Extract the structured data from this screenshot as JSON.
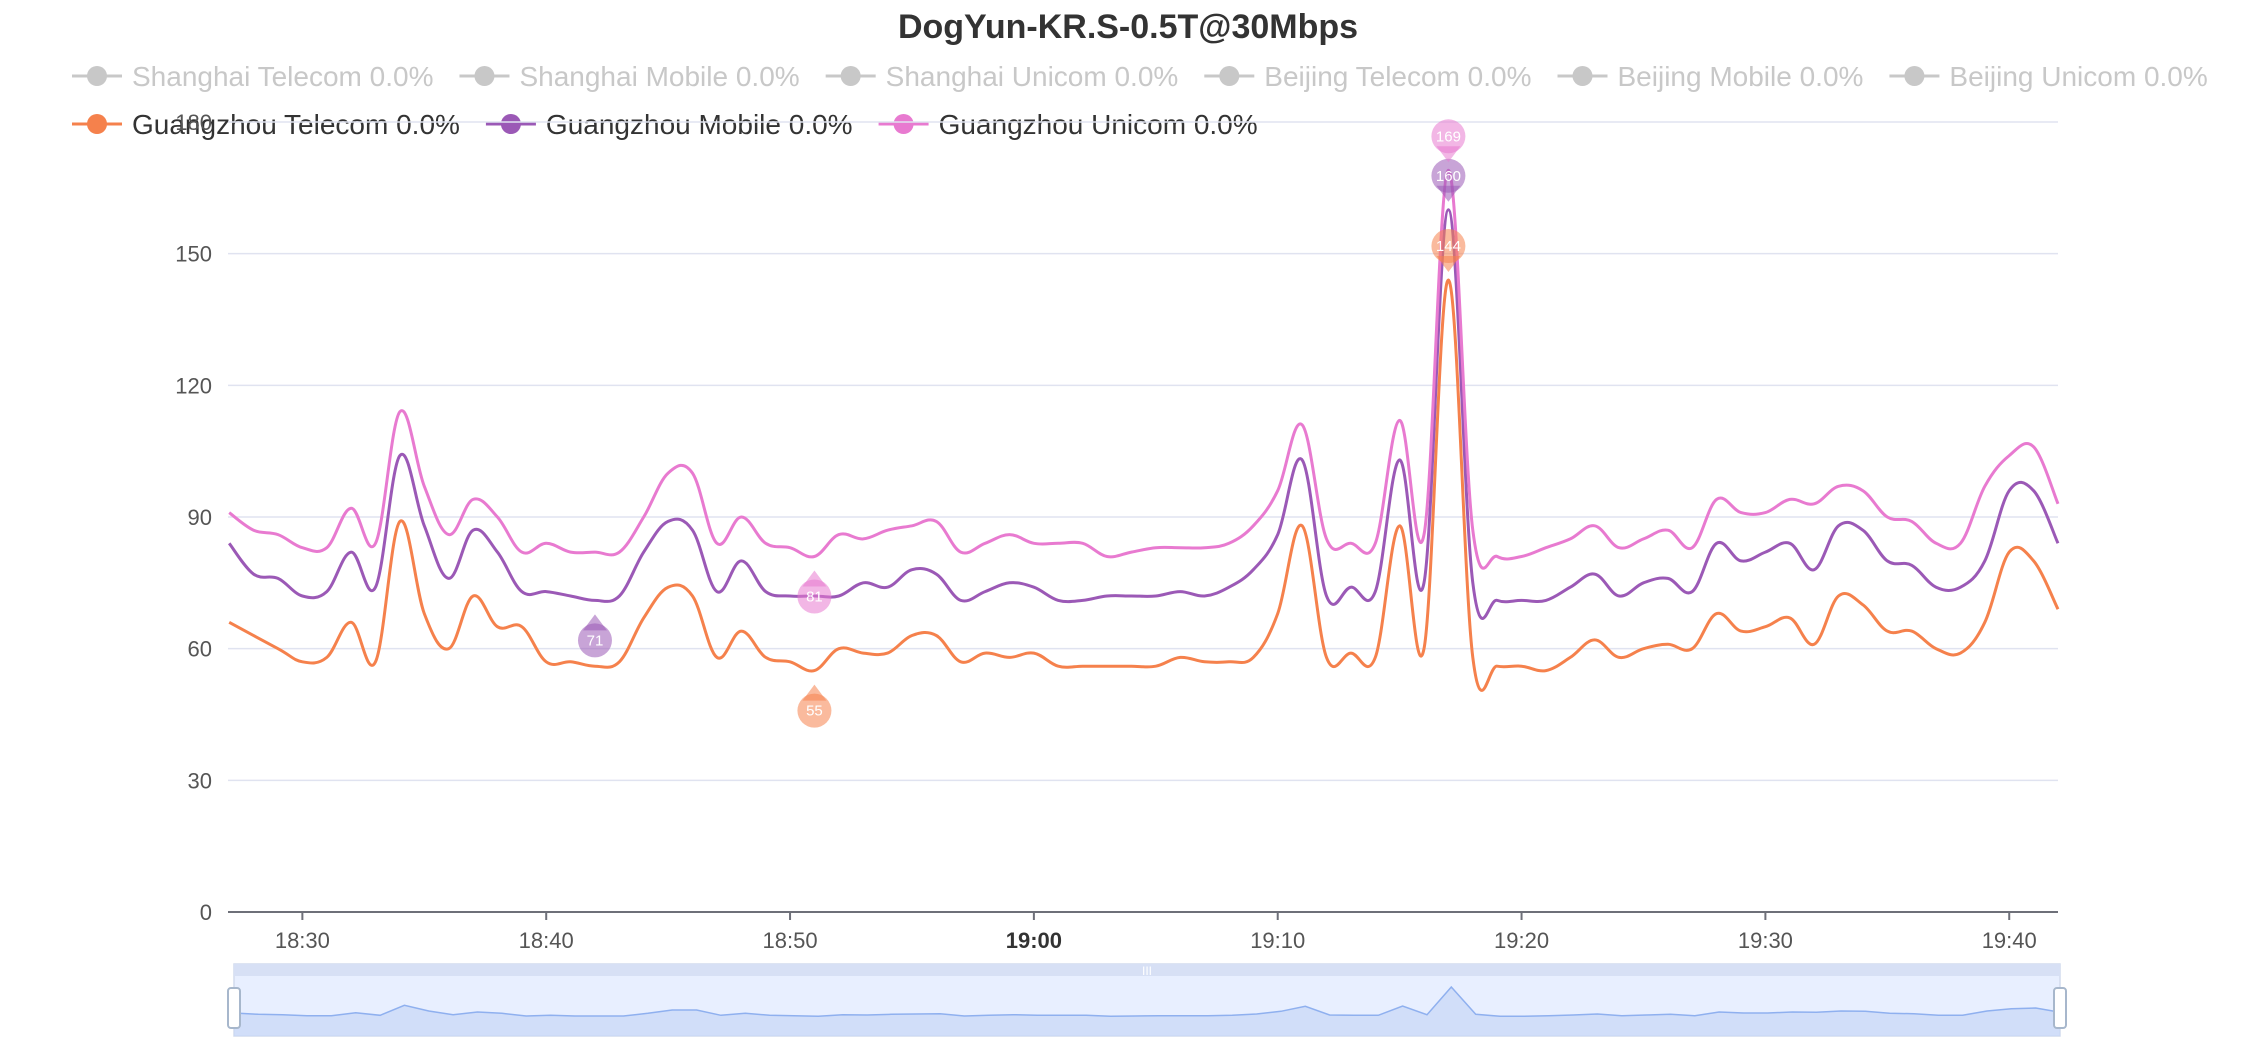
{
  "chart_data": {
    "type": "line",
    "title": "DogYun-KR.S-0.5T@30Mbps",
    "xlabel": "",
    "ylabel": "",
    "ylim": [
      0,
      180
    ],
    "yticks": [
      0,
      30,
      60,
      90,
      120,
      150,
      180
    ],
    "x_range": [
      "18:27",
      "19:42"
    ],
    "x_ticks": [
      "18:30",
      "18:40",
      "18:50",
      "19:00",
      "19:10",
      "19:20",
      "19:30",
      "19:40"
    ],
    "x_tick_bold": "19:00",
    "grid": true,
    "legend_position": "top",
    "legend": [
      {
        "label": "Shanghai Telecom 0.0%",
        "active": false,
        "color": "#c8c8c8"
      },
      {
        "label": "Shanghai Mobile 0.0%",
        "active": false,
        "color": "#c8c8c8"
      },
      {
        "label": "Shanghai Unicom 0.0%",
        "active": false,
        "color": "#c8c8c8"
      },
      {
        "label": "Beijing Telecom 0.0%",
        "active": false,
        "color": "#c8c8c8"
      },
      {
        "label": "Beijing Mobile 0.0%",
        "active": false,
        "color": "#c8c8c8"
      },
      {
        "label": "Beijing Unicom 0.0%",
        "active": false,
        "color": "#c8c8c8"
      },
      {
        "label": "Guangzhou Telecom 0.0%",
        "active": true,
        "color": "#f5814c"
      },
      {
        "label": "Guangzhou Mobile 0.0%",
        "active": true,
        "color": "#9b59b6"
      },
      {
        "label": "Guangzhou Unicom 0.0%",
        "active": true,
        "color": "#e87ad0"
      }
    ],
    "series": [
      {
        "name": "Guangzhou Telecom",
        "color": "#f5814c",
        "points": [
          [
            "18:27",
            66
          ],
          [
            "18:29",
            60
          ],
          [
            "18:30",
            57
          ],
          [
            "18:31",
            58
          ],
          [
            "18:32",
            66
          ],
          [
            "18:33",
            57
          ],
          [
            "18:34",
            89
          ],
          [
            "18:35",
            68
          ],
          [
            "18:36",
            60
          ],
          [
            "18:37",
            72
          ],
          [
            "18:38",
            65
          ],
          [
            "18:39",
            65
          ],
          [
            "18:40",
            57
          ],
          [
            "18:41",
            57
          ],
          [
            "18:42",
            56
          ],
          [
            "18:43",
            57
          ],
          [
            "18:44",
            67
          ],
          [
            "18:45",
            74
          ],
          [
            "18:46",
            72
          ],
          [
            "18:47",
            58
          ],
          [
            "18:48",
            64
          ],
          [
            "18:49",
            58
          ],
          [
            "18:50",
            57
          ],
          [
            "18:51",
            55
          ],
          [
            "18:52",
            60
          ],
          [
            "18:53",
            59
          ],
          [
            "18:54",
            59
          ],
          [
            "18:55",
            63
          ],
          [
            "18:56",
            63
          ],
          [
            "18:57",
            57
          ],
          [
            "18:58",
            59
          ],
          [
            "18:59",
            58
          ],
          [
            "19:00",
            59
          ],
          [
            "19:01",
            56
          ],
          [
            "19:02",
            56
          ],
          [
            "19:03",
            56
          ],
          [
            "19:04",
            56
          ],
          [
            "19:05",
            56
          ],
          [
            "19:06",
            58
          ],
          [
            "19:07",
            57
          ],
          [
            "19:08",
            57
          ],
          [
            "19:09",
            58
          ],
          [
            "19:10",
            68
          ],
          [
            "19:11",
            88
          ],
          [
            "19:12",
            58
          ],
          [
            "19:13",
            59
          ],
          [
            "19:14",
            58
          ],
          [
            "19:15",
            88
          ],
          [
            "19:16",
            60
          ],
          [
            "19:17",
            144
          ],
          [
            "19:18",
            58
          ],
          [
            "19:19",
            56
          ],
          [
            "19:20",
            56
          ],
          [
            "19:21",
            55
          ],
          [
            "19:22",
            58
          ],
          [
            "19:23",
            62
          ],
          [
            "19:24",
            58
          ],
          [
            "19:25",
            60
          ],
          [
            "19:26",
            61
          ],
          [
            "19:27",
            60
          ],
          [
            "19:28",
            68
          ],
          [
            "19:29",
            64
          ],
          [
            "19:30",
            65
          ],
          [
            "19:31",
            67
          ],
          [
            "19:32",
            61
          ],
          [
            "19:33",
            72
          ],
          [
            "19:34",
            70
          ],
          [
            "19:35",
            64
          ],
          [
            "19:36",
            64
          ],
          [
            "19:37",
            60
          ],
          [
            "19:38",
            59
          ],
          [
            "19:39",
            66
          ],
          [
            "19:40",
            82
          ],
          [
            "19:41",
            80
          ],
          [
            "19:42",
            69
          ]
        ],
        "min": {
          "time": "18:51",
          "value": 55
        },
        "max": {
          "time": "19:17",
          "value": 144
        }
      },
      {
        "name": "Guangzhou Mobile",
        "color": "#9b59b6",
        "points": [
          [
            "18:27",
            84
          ],
          [
            "18:28",
            77
          ],
          [
            "18:29",
            76
          ],
          [
            "18:30",
            72
          ],
          [
            "18:31",
            73
          ],
          [
            "18:32",
            82
          ],
          [
            "18:33",
            74
          ],
          [
            "18:34",
            104
          ],
          [
            "18:35",
            88
          ],
          [
            "18:36",
            76
          ],
          [
            "18:37",
            87
          ],
          [
            "18:38",
            82
          ],
          [
            "18:39",
            73
          ],
          [
            "18:40",
            73
          ],
          [
            "18:41",
            72
          ],
          [
            "18:42",
            71
          ],
          [
            "18:43",
            72
          ],
          [
            "18:44",
            82
          ],
          [
            "18:45",
            89
          ],
          [
            "18:46",
            87
          ],
          [
            "18:47",
            73
          ],
          [
            "18:48",
            80
          ],
          [
            "18:49",
            73
          ],
          [
            "18:50",
            72
          ],
          [
            "18:51",
            72
          ],
          [
            "18:52",
            72
          ],
          [
            "18:53",
            75
          ],
          [
            "18:54",
            74
          ],
          [
            "18:55",
            78
          ],
          [
            "18:56",
            77
          ],
          [
            "18:57",
            71
          ],
          [
            "18:58",
            73
          ],
          [
            "18:59",
            75
          ],
          [
            "19:00",
            74
          ],
          [
            "19:01",
            71
          ],
          [
            "19:02",
            71
          ],
          [
            "19:03",
            72
          ],
          [
            "19:04",
            72
          ],
          [
            "19:05",
            72
          ],
          [
            "19:06",
            73
          ],
          [
            "19:07",
            72
          ],
          [
            "19:08",
            74
          ],
          [
            "19:09",
            78
          ],
          [
            "19:10",
            86
          ],
          [
            "19:11",
            103
          ],
          [
            "19:12",
            72
          ],
          [
            "19:13",
            74
          ],
          [
            "19:14",
            73
          ],
          [
            "19:15",
            103
          ],
          [
            "19:16",
            75
          ],
          [
            "19:17",
            160
          ],
          [
            "19:18",
            75
          ],
          [
            "19:19",
            71
          ],
          [
            "19:20",
            71
          ],
          [
            "19:21",
            71
          ],
          [
            "19:22",
            74
          ],
          [
            "19:23",
            77
          ],
          [
            "19:24",
            72
          ],
          [
            "19:25",
            75
          ],
          [
            "19:26",
            76
          ],
          [
            "19:27",
            73
          ],
          [
            "19:28",
            84
          ],
          [
            "19:29",
            80
          ],
          [
            "19:30",
            82
          ],
          [
            "19:31",
            84
          ],
          [
            "19:32",
            78
          ],
          [
            "19:33",
            88
          ],
          [
            "19:34",
            87
          ],
          [
            "19:35",
            80
          ],
          [
            "19:36",
            79
          ],
          [
            "19:37",
            74
          ],
          [
            "19:38",
            74
          ],
          [
            "19:39",
            80
          ],
          [
            "19:40",
            96
          ],
          [
            "19:41",
            96
          ],
          [
            "19:42",
            84
          ]
        ],
        "min": {
          "time": "18:42",
          "value": 71
        },
        "max": {
          "time": "19:17",
          "value": 160
        }
      },
      {
        "name": "Guangzhou Unicom",
        "color": "#e87ad0",
        "points": [
          [
            "18:27",
            91
          ],
          [
            "18:28",
            87
          ],
          [
            "18:29",
            86
          ],
          [
            "18:30",
            83
          ],
          [
            "18:31",
            83
          ],
          [
            "18:32",
            92
          ],
          [
            "18:33",
            84
          ],
          [
            "18:34",
            114
          ],
          [
            "18:35",
            97
          ],
          [
            "18:36",
            86
          ],
          [
            "18:37",
            94
          ],
          [
            "18:38",
            90
          ],
          [
            "18:39",
            82
          ],
          [
            "18:40",
            84
          ],
          [
            "18:41",
            82
          ],
          [
            "18:42",
            82
          ],
          [
            "18:43",
            82
          ],
          [
            "18:44",
            90
          ],
          [
            "18:45",
            100
          ],
          [
            "18:46",
            100
          ],
          [
            "18:47",
            84
          ],
          [
            "18:48",
            90
          ],
          [
            "18:49",
            84
          ],
          [
            "18:50",
            83
          ],
          [
            "18:51",
            81
          ],
          [
            "18:52",
            86
          ],
          [
            "18:53",
            85
          ],
          [
            "18:54",
            87
          ],
          [
            "18:55",
            88
          ],
          [
            "18:56",
            89
          ],
          [
            "18:57",
            82
          ],
          [
            "18:58",
            84
          ],
          [
            "18:59",
            86
          ],
          [
            "19:00",
            84
          ],
          [
            "19:01",
            84
          ],
          [
            "19:02",
            84
          ],
          [
            "19:03",
            81
          ],
          [
            "19:04",
            82
          ],
          [
            "19:05",
            83
          ],
          [
            "19:06",
            83
          ],
          [
            "19:07",
            83
          ],
          [
            "19:08",
            84
          ],
          [
            "19:09",
            88
          ],
          [
            "19:10",
            96
          ],
          [
            "19:11",
            111
          ],
          [
            "19:12",
            85
          ],
          [
            "19:13",
            84
          ],
          [
            "19:14",
            84
          ],
          [
            "19:15",
            112
          ],
          [
            "19:16",
            86
          ],
          [
            "19:17",
            169
          ],
          [
            "19:18",
            87
          ],
          [
            "19:19",
            81
          ],
          [
            "19:20",
            81
          ],
          [
            "19:21",
            83
          ],
          [
            "19:22",
            85
          ],
          [
            "19:23",
            88
          ],
          [
            "19:24",
            83
          ],
          [
            "19:25",
            85
          ],
          [
            "19:26",
            87
          ],
          [
            "19:27",
            83
          ],
          [
            "19:28",
            94
          ],
          [
            "19:29",
            91
          ],
          [
            "19:30",
            91
          ],
          [
            "19:31",
            94
          ],
          [
            "19:32",
            93
          ],
          [
            "19:33",
            97
          ],
          [
            "19:34",
            96
          ],
          [
            "19:35",
            90
          ],
          [
            "19:36",
            89
          ],
          [
            "19:37",
            84
          ],
          [
            "19:38",
            84
          ],
          [
            "19:39",
            97
          ],
          [
            "19:40",
            104
          ],
          [
            "19:41",
            106
          ],
          [
            "19:42",
            93
          ]
        ],
        "min": {
          "time": "18:51",
          "value": 81
        },
        "max": {
          "time": "19:17",
          "value": 169
        }
      }
    ],
    "data_zoom": {
      "start": 0,
      "end": 100,
      "handle_label": "III"
    }
  }
}
